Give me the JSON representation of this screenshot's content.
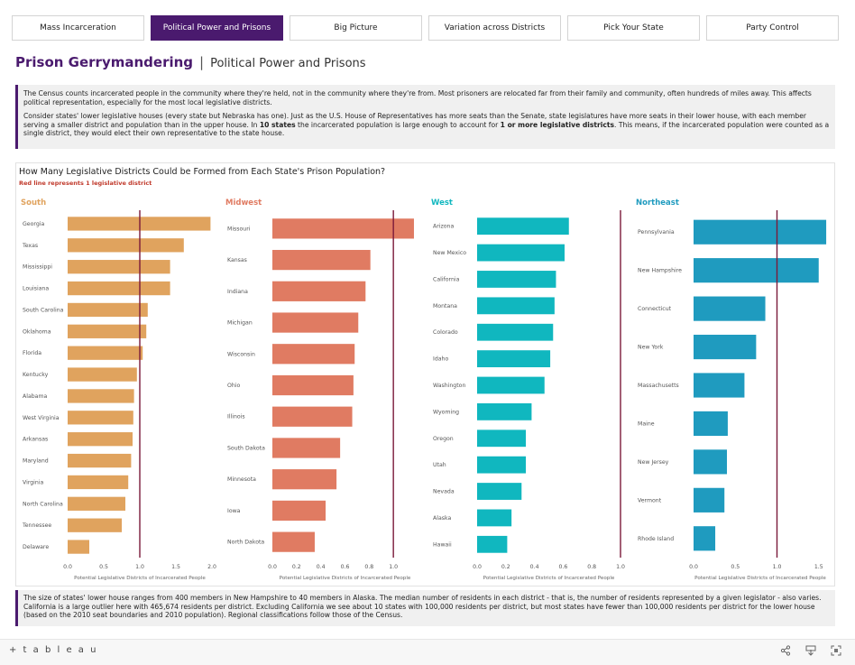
{
  "tabs": [
    {
      "label": "Mass Incarceration",
      "active": false
    },
    {
      "label": "Political Power and Prisons",
      "active": true
    },
    {
      "label": "Big Picture",
      "active": false
    },
    {
      "label": "Variation across Districts",
      "active": false
    },
    {
      "label": "Pick Your State",
      "active": false
    },
    {
      "label": "Party Control",
      "active": false
    }
  ],
  "header": {
    "title": "Prison Gerrymandering",
    "separator": "|",
    "subtitle": "Political Power and Prisons"
  },
  "intro": {
    "p1": "The Census counts incarcerated people in the community where they're held, not in the community where they're from. Most prisoners are relocated far from their family and community, often hundreds of miles away. This affects political representation, especially for the most local legislative districts.",
    "p2_a": "Consider states' lower legislative houses (every state but Nebraska has one). Just as the U.S. House of Representatives has more seats than the Senate, state legislatures have more seats in their lower house, with each member serving a smaller district and population than in the upper house. In ",
    "p2_b": "10 states",
    "p2_c": " the incarcerated population is large enough to account for ",
    "p2_d": "1 or more legislative districts",
    "p2_e": ". This means, if the incarcerated population were counted as a single district, they would elect their own representative to the state house."
  },
  "bottom_text": "The size of states' lower house ranges from 400 members in New Hampshire to 40 members in Alaska. The median number of residents in each district - that is, the number of residents represented by a given legislator - also varies. California is a large outlier here with 465,674 residents per district. Excluding California we see about 10 states with 100,000 residents per district, but most states have fewer than 100,000 residents per district for the lower house (based on the 2010 seat boundaries and 2010 population). Regional classifications follow those of the Census.",
  "footer": {
    "brand": "+ t a b l e a u",
    "share_icon": "share-icon",
    "download_icon": "download-icon",
    "fullscreen_icon": "fullscreen-icon"
  },
  "chart_data": {
    "title": "How Many Legislative Districts Could be Formed from Each State's Prison Population?",
    "note": "Red line represents 1 legislative district",
    "type": "bar",
    "orientation": "horizontal",
    "reference_line": 1,
    "xlabel": "Potential Legislative Districts of Incarcerated People",
    "reference_color": "#7a1a3a",
    "panels": [
      {
        "name": "South",
        "color": "#e0a35e",
        "xlim": [
          0,
          2.0
        ],
        "ticks": [
          "0.0",
          "0.5",
          "1.0",
          "1.5",
          "2.0"
        ],
        "categories": [
          "Georgia",
          "Texas",
          "Mississippi",
          "Louisiana",
          "South Carolina",
          "Oklahoma",
          "Florida",
          "Kentucky",
          "Alabama",
          "West Virginia",
          "Arkansas",
          "Maryland",
          "Virginia",
          "North Carolina",
          "Tennessee",
          "Delaware"
        ],
        "values": [
          1.98,
          1.61,
          1.42,
          1.42,
          1.11,
          1.09,
          1.04,
          0.96,
          0.92,
          0.91,
          0.9,
          0.88,
          0.84,
          0.8,
          0.75,
          0.3
        ]
      },
      {
        "name": "Midwest",
        "color": "#e07b62",
        "xlim": [
          0,
          1.2
        ],
        "ticks": [
          "0.0",
          "0.2",
          "0.4",
          "0.6",
          "0.8",
          "1.0"
        ],
        "categories": [
          "Missouri",
          "Kansas",
          "Indiana",
          "Michigan",
          "Wisconsin",
          "Ohio",
          "Illinois",
          "South Dakota",
          "Minnesota",
          "Iowa",
          "North Dakota"
        ],
        "values": [
          1.17,
          0.81,
          0.77,
          0.71,
          0.68,
          0.67,
          0.66,
          0.56,
          0.53,
          0.44,
          0.35
        ]
      },
      {
        "name": "West",
        "color": "#10b7bf",
        "xlim": [
          0,
          1.0
        ],
        "ticks": [
          "0.0",
          "0.2",
          "0.4",
          "0.6",
          "0.8",
          "1.0"
        ],
        "categories": [
          "Arizona",
          "New Mexico",
          "California",
          "Montana",
          "Colorado",
          "Idaho",
          "Washington",
          "Wyoming",
          "Oregon",
          "Utah",
          "Nevada",
          "Alaska",
          "Hawaii"
        ],
        "values": [
          0.64,
          0.61,
          0.55,
          0.54,
          0.53,
          0.51,
          0.47,
          0.38,
          0.34,
          0.34,
          0.31,
          0.24,
          0.21
        ]
      },
      {
        "name": "Northeast",
        "color": "#1f9bbf",
        "xlim": [
          0,
          1.6
        ],
        "ticks": [
          "0.0",
          "0.5",
          "1.0",
          "1.5"
        ],
        "categories": [
          "Pennsylvania",
          "New Hampshire",
          "Connecticut",
          "New York",
          "Massachusetts",
          "Maine",
          "New Jersey",
          "Vermont",
          "Rhode Island"
        ],
        "values": [
          1.59,
          1.5,
          0.86,
          0.75,
          0.61,
          0.41,
          0.4,
          0.37,
          0.26
        ]
      }
    ]
  }
}
